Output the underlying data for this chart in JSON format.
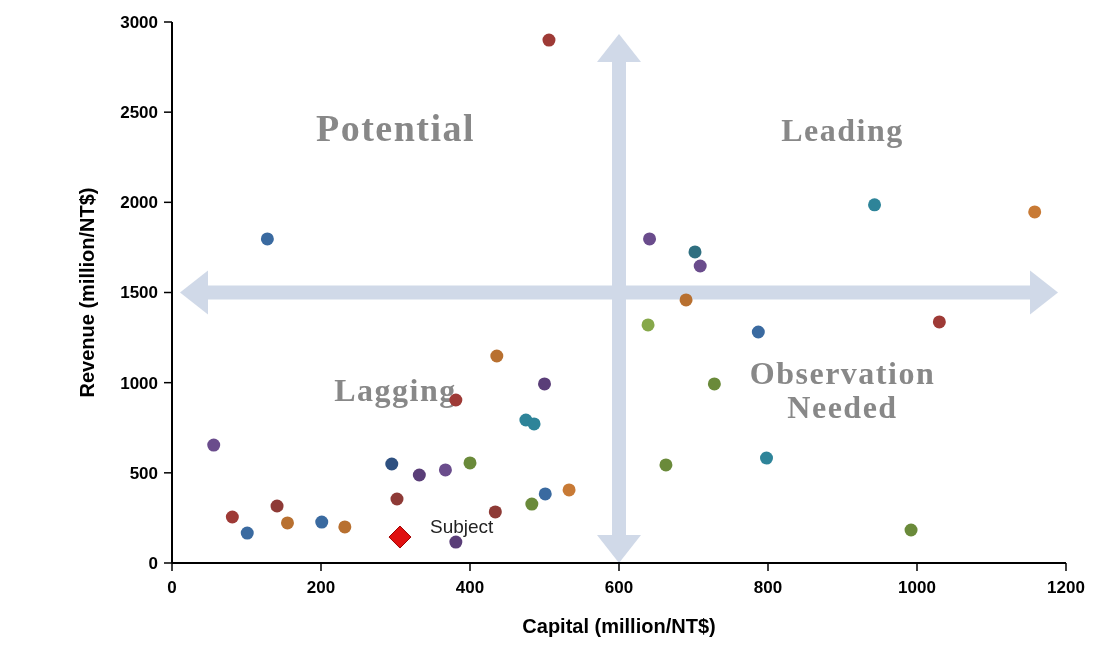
{
  "chart_data": {
    "type": "scatter",
    "xlabel": "Capital (million/NT$)",
    "ylabel": "Revenue (million/NT$)",
    "xlim": [
      0,
      1200
    ],
    "xticks": [
      0,
      200,
      400,
      600,
      800,
      1000,
      1200
    ],
    "ylim": [
      0,
      3000
    ],
    "yticks": [
      0,
      500,
      1000,
      1500,
      2000,
      2500,
      3000
    ],
    "grid": false,
    "marker": "circle",
    "annotations": [
      "Potential",
      "Leading",
      "Lagging",
      "Observation\nNeeded"
    ],
    "ref_lines": [
      {
        "axis": "x",
        "value": 600,
        "color": "#d0d9e8"
      },
      {
        "axis": "y",
        "value": 1500,
        "color": "#d0d9e8"
      }
    ],
    "series": [
      {
        "x": [
          506,
          128,
          641,
          702,
          709,
          943,
          1158,
          690,
          639,
          787,
          1030,
          728,
          663,
          798,
          992,
          436,
          500,
          381,
          475,
          486,
          56,
          295,
          332,
          367,
          400,
          501,
          533,
          483,
          302,
          434,
          81,
          101,
          155,
          201,
          232,
          381,
          141
        ],
        "values": [
          2900,
          1797,
          1797,
          1725,
          1647,
          1986,
          1947,
          1459,
          1320,
          1281,
          1337,
          993,
          544,
          582,
          183,
          1148,
          993,
          904,
          793,
          771,
          654,
          549,
          488,
          516,
          555,
          383,
          405,
          327,
          355,
          283,
          255,
          166,
          222,
          227,
          200,
          116,
          316
        ],
        "colors": [
          "#9e3a36",
          "#3a6aa0",
          "#6a4c8c",
          "#2f6f80",
          "#6a4c8c",
          "#2e8499",
          "#c87a35",
          "#b87030",
          "#86a84a",
          "#3a6aa0",
          "#9e3a36",
          "#6a8a3a",
          "#6a8a3a",
          "#2e8499",
          "#6a8a3a",
          "#b87030",
          "#5a3e78",
          "#9e3a36",
          "#2e8499",
          "#2e8499",
          "#6a4c8c",
          "#2e5080",
          "#5a3e78",
          "#6a4c8c",
          "#6a8a3a",
          "#3a6aa0",
          "#c87a35",
          "#6a8a3a",
          "#8e3a36",
          "#8e3a36",
          "#9e3a36",
          "#3a6aa0",
          "#b87030",
          "#3a6aa0",
          "#b87030",
          "#5a3e78",
          "#8e3a36"
        ]
      },
      {
        "name": "Subject",
        "x": [
          306
        ],
        "values": [
          144
        ],
        "color": "#e01010",
        "marker": "diamond"
      }
    ]
  }
}
